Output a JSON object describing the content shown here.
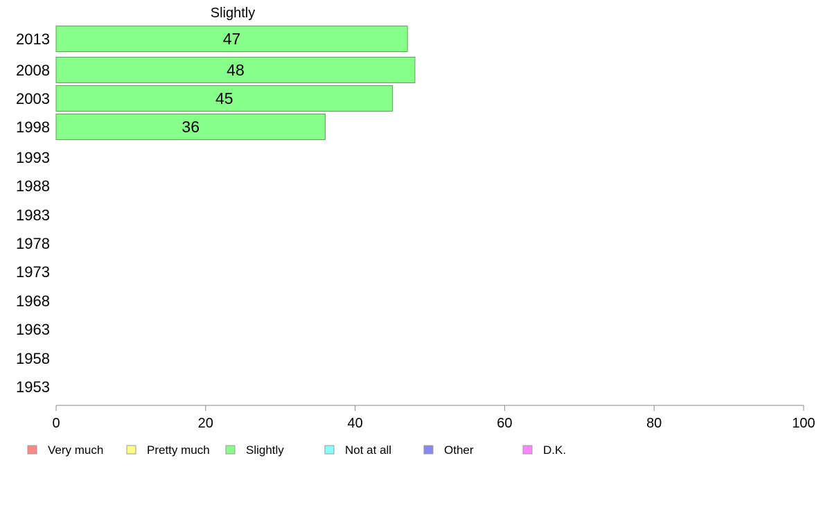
{
  "chart_data": {
    "type": "bar",
    "orientation": "horizontal",
    "title": "Slightly",
    "categories": [
      "2013",
      "2008",
      "2003",
      "1998",
      "1993",
      "1988",
      "1983",
      "1978",
      "1973",
      "1968",
      "1963",
      "1958",
      "1953"
    ],
    "series": [
      {
        "name": "Slightly",
        "color": "#88ff88",
        "values": [
          47,
          48,
          45,
          36,
          null,
          null,
          null,
          null,
          null,
          null,
          null,
          null,
          null
        ],
        "data_labels": [
          "47",
          "48",
          "45",
          "36",
          "",
          "",
          "",
          "",
          "",
          "",
          "",
          "",
          ""
        ]
      }
    ],
    "xlim": [
      0,
      100
    ],
    "xticks": [
      0,
      20,
      40,
      60,
      80,
      100
    ],
    "xtick_labels": [
      "0",
      "20",
      "40",
      "60",
      "80",
      "100"
    ],
    "grid": false,
    "legend_position": "bottom",
    "legend": [
      {
        "label": "Very much",
        "color": "#ff8888"
      },
      {
        "label": "Pretty much",
        "color": "#ffff88"
      },
      {
        "label": "Slightly",
        "color": "#88ff88"
      },
      {
        "label": "Not at all",
        "color": "#88ffff"
      },
      {
        "label": "Other",
        "color": "#8888ee"
      },
      {
        "label": "D.K.",
        "color": "#ff88ff"
      }
    ]
  }
}
